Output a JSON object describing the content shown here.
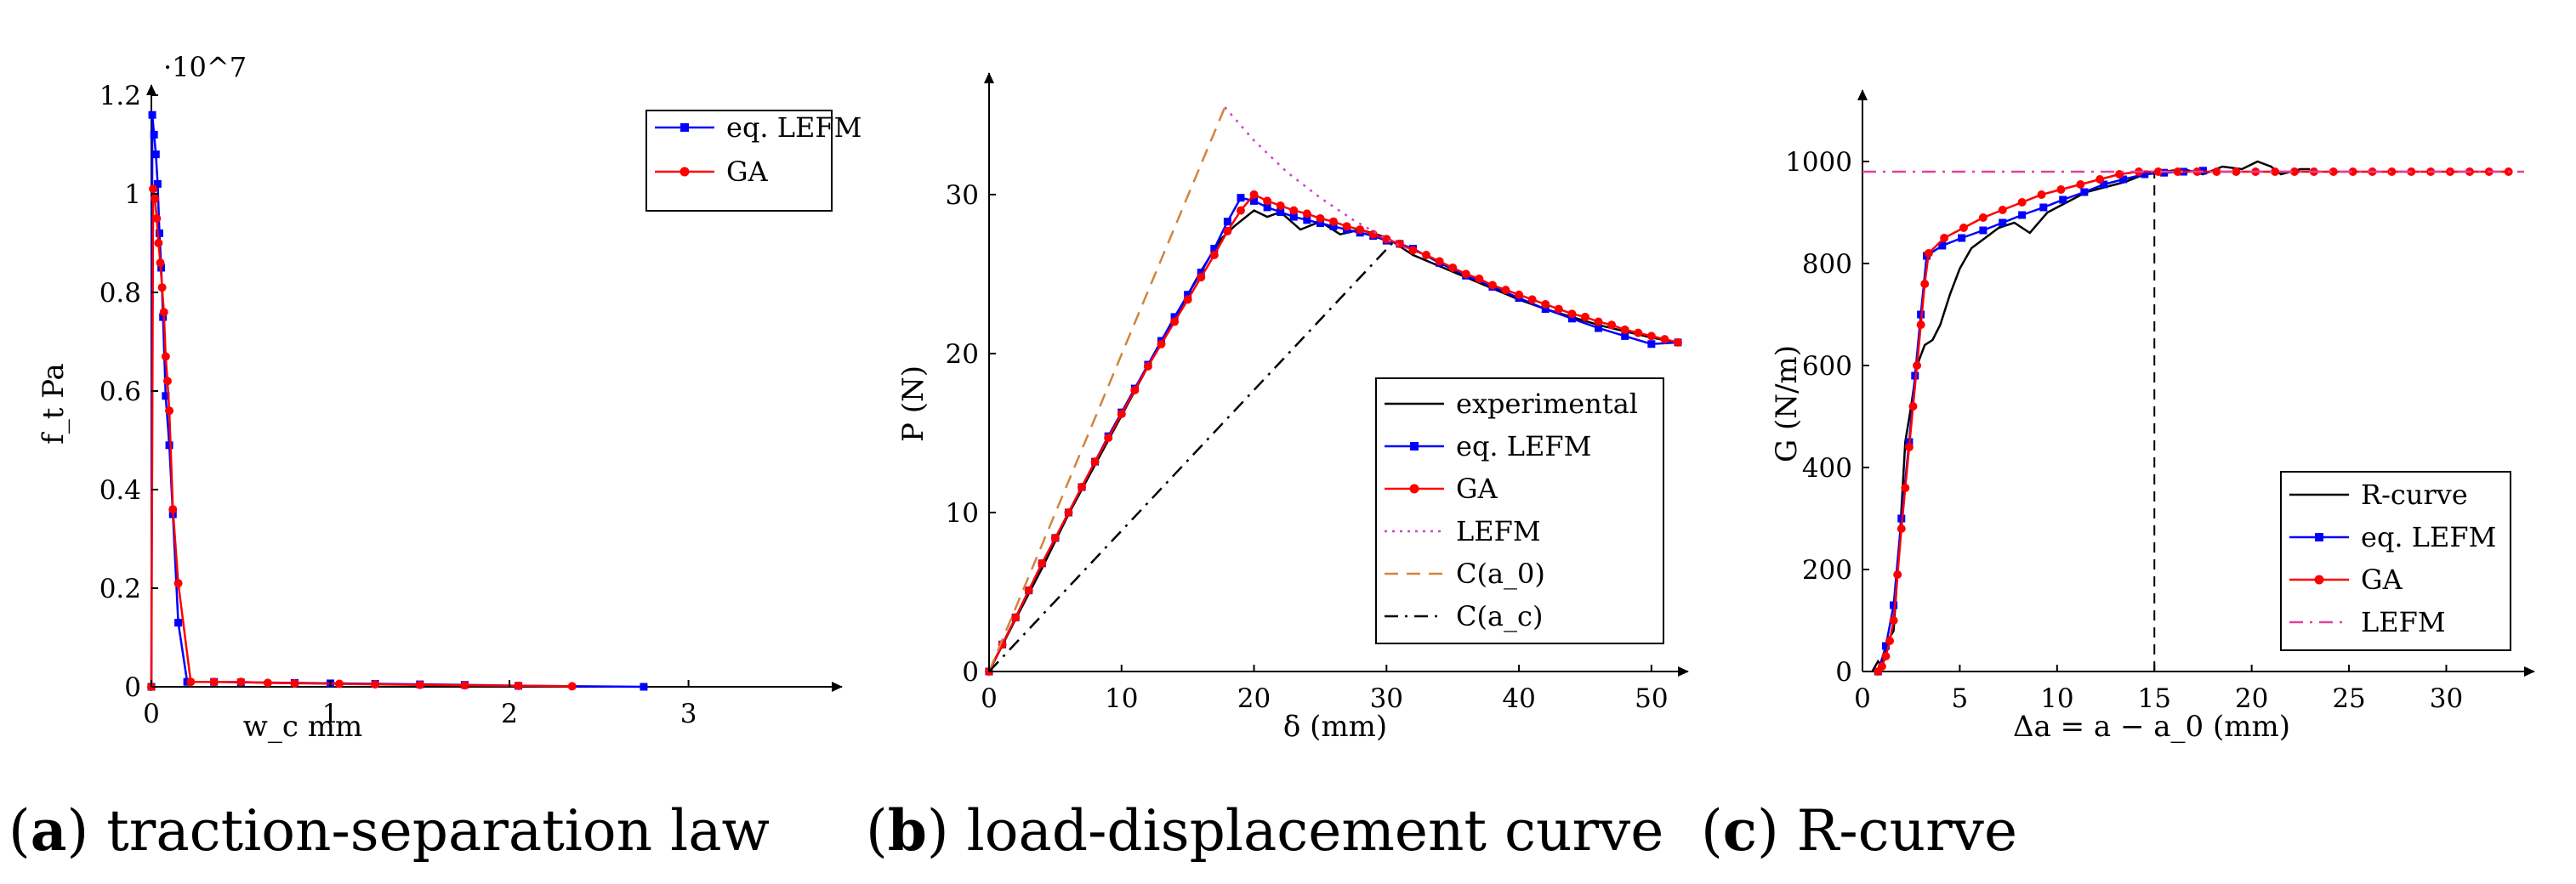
{
  "figure": {
    "captions": [
      {
        "label": "a",
        "text": " traction-separation law"
      },
      {
        "label": "b",
        "text": " load-displacement curve"
      },
      {
        "label": "c",
        "text": " R-curve"
      }
    ]
  },
  "colors": {
    "experimental": "#000000",
    "eq_lefm": "#0000ff",
    "ga": "#ff0000",
    "lefm_dotted": "#d040d0",
    "c_a0": "#d2843c",
    "c_ac": "#000000",
    "r_curve": "#000000",
    "lefm_line": "#e040a0"
  },
  "chart_data": [
    {
      "type": "line",
      "title": "",
      "xlabel": "w_c mm",
      "ylabel": "f_t Pa",
      "y_multiplier": "·10^7",
      "xlim": [
        0,
        3.8
      ],
      "ylim": [
        0,
        1.2
      ],
      "xticks": [
        0,
        1,
        2,
        3
      ],
      "yticks": [
        0,
        0.2,
        0.4,
        0.6,
        0.8,
        1,
        1.2
      ],
      "grid": false,
      "legend_position": "top-right",
      "series": [
        {
          "name": "eq. LEFM",
          "marker": "square",
          "color": "eq_lefm",
          "x": [
            0,
            0.005,
            0.015,
            0.025,
            0.035,
            0.045,
            0.055,
            0.065,
            0.08,
            0.1,
            0.12,
            0.15,
            0.2,
            0.35,
            0.5,
            0.8,
            1.0,
            1.25,
            1.5,
            1.75,
            2.05,
            2.75
          ],
          "y": [
            0,
            1.16,
            1.12,
            1.08,
            1.02,
            0.92,
            0.85,
            0.75,
            0.59,
            0.49,
            0.35,
            0.13,
            0.01,
            0.01,
            0.009,
            0.008,
            0.007,
            0.006,
            0.005,
            0.004,
            0.002,
            0.0
          ]
        },
        {
          "name": "GA",
          "marker": "circle",
          "color": "ga",
          "x": [
            0,
            0.01,
            0.02,
            0.03,
            0.04,
            0.05,
            0.06,
            0.07,
            0.08,
            0.09,
            0.1,
            0.12,
            0.15,
            0.22,
            0.35,
            0.5,
            0.65,
            0.8,
            1.05,
            1.25,
            1.5,
            1.75,
            2.05,
            2.35
          ],
          "y": [
            0,
            1.01,
            0.99,
            0.95,
            0.9,
            0.86,
            0.81,
            0.76,
            0.67,
            0.62,
            0.56,
            0.36,
            0.21,
            0.01,
            0.01,
            0.01,
            0.008,
            0.007,
            0.006,
            0.005,
            0.004,
            0.003,
            0.002,
            0.001
          ]
        }
      ]
    },
    {
      "type": "line",
      "title": "",
      "xlabel": "δ (mm)",
      "ylabel": "P (N)",
      "xlim": [
        0,
        52
      ],
      "ylim": [
        0,
        37
      ],
      "xticks": [
        0,
        10,
        20,
        30,
        40,
        50
      ],
      "yticks": [
        0,
        10,
        20,
        30
      ],
      "grid": false,
      "legend_position": "bottom-right",
      "series": [
        {
          "name": "experimental",
          "style": "solid",
          "color": "experimental",
          "x": [
            0,
            2,
            4,
            6,
            8,
            10,
            12,
            14,
            16,
            17.5,
            18.5,
            20,
            21,
            22,
            23.5,
            25,
            26.5,
            28,
            30,
            32,
            34,
            36,
            38,
            40,
            42,
            44,
            46,
            48,
            50,
            52
          ],
          "y": [
            0,
            3.3,
            6.5,
            9.9,
            13,
            16.1,
            19.2,
            22.2,
            25.2,
            27.2,
            28,
            29,
            28.6,
            28.9,
            27.8,
            28.3,
            27.5,
            27.8,
            27.3,
            26.2,
            25.5,
            24.8,
            24.1,
            23.4,
            22.8,
            22.3,
            21.8,
            21.4,
            21.0,
            20.7
          ]
        },
        {
          "name": "eq. LEFM",
          "marker": "square",
          "color": "eq_lefm",
          "x": [
            0,
            1,
            2,
            3,
            4,
            5,
            6,
            7,
            8,
            9,
            10,
            11,
            12,
            13,
            14,
            15,
            16,
            17,
            18,
            19,
            20,
            21,
            22,
            23,
            24,
            25,
            26,
            27,
            28,
            29,
            30,
            31,
            32,
            34,
            36,
            38,
            40,
            42,
            44,
            46,
            48,
            50,
            52
          ],
          "y": [
            0,
            1.7,
            3.4,
            5.1,
            6.8,
            8.4,
            10,
            11.6,
            13.2,
            14.8,
            16.3,
            17.8,
            19.3,
            20.8,
            22.3,
            23.7,
            25.1,
            26.6,
            28.3,
            29.8,
            29.6,
            29.2,
            28.9,
            28.6,
            28.4,
            28.2,
            28.0,
            27.8,
            27.6,
            27.4,
            27.1,
            26.9,
            26.6,
            25.7,
            24.9,
            24.2,
            23.5,
            22.8,
            22.2,
            21.6,
            21.1,
            20.6,
            20.7
          ]
        },
        {
          "name": "GA",
          "marker": "circle",
          "color": "ga",
          "x": [
            0,
            1,
            2,
            3,
            4,
            5,
            6,
            7,
            8,
            9,
            10,
            11,
            12,
            13,
            14,
            15,
            16,
            17,
            18,
            19,
            20,
            21,
            22,
            23,
            24,
            25,
            26,
            27,
            28,
            29,
            30,
            31,
            32,
            33,
            34,
            35,
            36,
            37,
            38,
            39,
            40,
            41,
            42,
            43,
            44,
            45,
            46,
            47,
            48,
            49,
            50,
            51,
            52
          ],
          "y": [
            0,
            1.7,
            3.4,
            5.1,
            6.8,
            8.4,
            10,
            11.6,
            13.2,
            14.7,
            16.2,
            17.7,
            19.2,
            20.6,
            22.0,
            23.4,
            24.8,
            26.2,
            27.7,
            29.0,
            30.0,
            29.6,
            29.3,
            29.0,
            28.8,
            28.5,
            28.3,
            28.0,
            27.8,
            27.5,
            27.2,
            26.9,
            26.5,
            26.2,
            25.8,
            25.4,
            25.0,
            24.7,
            24.3,
            24.0,
            23.7,
            23.4,
            23.1,
            22.8,
            22.5,
            22.3,
            22.0,
            21.8,
            21.5,
            21.3,
            21.1,
            20.9,
            20.7
          ]
        },
        {
          "name": "LEFM",
          "style": "dotted",
          "color": "lefm_dotted",
          "x": [
            17.8,
            20,
            22.5,
            25,
            27.5,
            30,
            31.5
          ],
          "y": [
            35.5,
            33.4,
            31.4,
            29.8,
            28.4,
            27.2,
            26.6
          ]
        },
        {
          "name": "C(a_0)",
          "style": "dashed",
          "color": "c_a0",
          "x": [
            0,
            17.8
          ],
          "y": [
            0,
            35.5
          ]
        },
        {
          "name": "C(a_c)",
          "style": "dashdot",
          "color": "c_ac",
          "x": [
            0,
            30.5
          ],
          "y": [
            0,
            27.0
          ]
        }
      ]
    },
    {
      "type": "line",
      "title": "",
      "xlabel": "Δa = a − a_0 (mm)",
      "ylabel": "G (N/m)",
      "xlim": [
        0,
        34
      ],
      "ylim": [
        0,
        1120
      ],
      "xticks": [
        0,
        5,
        10,
        15,
        20,
        25,
        30
      ],
      "yticks": [
        0,
        200,
        400,
        600,
        800,
        1000
      ],
      "grid": false,
      "legend_position": "bottom-right",
      "vline_x": 15,
      "series": [
        {
          "name": "R-curve",
          "style": "solid",
          "color": "r_curve",
          "x": [
            0.5,
            0.8,
            1.0,
            1.3,
            1.6,
            1.9,
            2.2,
            2.5,
            2.8,
            3.2,
            3.6,
            4.0,
            4.5,
            5.0,
            5.6,
            6.3,
            7.0,
            7.8,
            8.6,
            9.5,
            10.5,
            11.5,
            12.5,
            13.5,
            14.5,
            15.5,
            16.5,
            17.5,
            18.5,
            19.5,
            20.3,
            21.0,
            21.5,
            22.0,
            22.5,
            23.0
          ],
          "y": [
            0,
            20,
            10,
            60,
            80,
            250,
            450,
            520,
            600,
            640,
            650,
            680,
            740,
            790,
            830,
            850,
            870,
            880,
            860,
            900,
            920,
            940,
            950,
            960,
            975,
            980,
            985,
            975,
            990,
            985,
            1000,
            990,
            975,
            980,
            985,
            985
          ]
        },
        {
          "name": "eq. LEFM",
          "marker": "square",
          "color": "eq_lefm",
          "x": [
            0.8,
            1.2,
            1.6,
            2.0,
            2.4,
            2.7,
            3.0,
            3.3,
            4.1,
            5.1,
            6.2,
            7.2,
            8.2,
            9.3,
            10.3,
            11.4,
            12.4,
            13.4,
            14.5,
            15.5,
            16.5,
            17.5
          ],
          "y": [
            0,
            50,
            130,
            300,
            450,
            580,
            700,
            815,
            835,
            850,
            865,
            880,
            895,
            910,
            925,
            940,
            955,
            965,
            975,
            978,
            980,
            982
          ]
        },
        {
          "name": "GA",
          "marker": "circle",
          "color": "ga",
          "x": [
            0.8,
            1.0,
            1.2,
            1.4,
            1.6,
            1.8,
            2.0,
            2.2,
            2.4,
            2.6,
            2.8,
            3.0,
            3.2,
            3.4,
            4.2,
            5.2,
            6.2,
            7.2,
            8.2,
            9.2,
            10.2,
            11.2,
            12.2,
            13.2,
            14.2,
            15.2,
            16.2,
            17.2,
            18.2,
            19.2,
            20.2,
            21.2,
            22.2,
            23.2,
            24.2,
            25.2,
            26.2,
            27.2,
            28.2,
            29.2,
            30.2,
            31.2,
            32.2,
            33.2
          ],
          "y": [
            0,
            10,
            30,
            60,
            100,
            190,
            280,
            360,
            440,
            520,
            600,
            680,
            760,
            820,
            850,
            870,
            890,
            905,
            920,
            935,
            945,
            955,
            965,
            975,
            980,
            980,
            980,
            980,
            980,
            980,
            980,
            980,
            980,
            980,
            980,
            980,
            980,
            980,
            980,
            980,
            980,
            980,
            980,
            980
          ]
        },
        {
          "name": "LEFM",
          "style": "dashdot",
          "color": "lefm_line",
          "x": [
            0,
            34
          ],
          "y": [
            980,
            980
          ]
        }
      ]
    }
  ]
}
